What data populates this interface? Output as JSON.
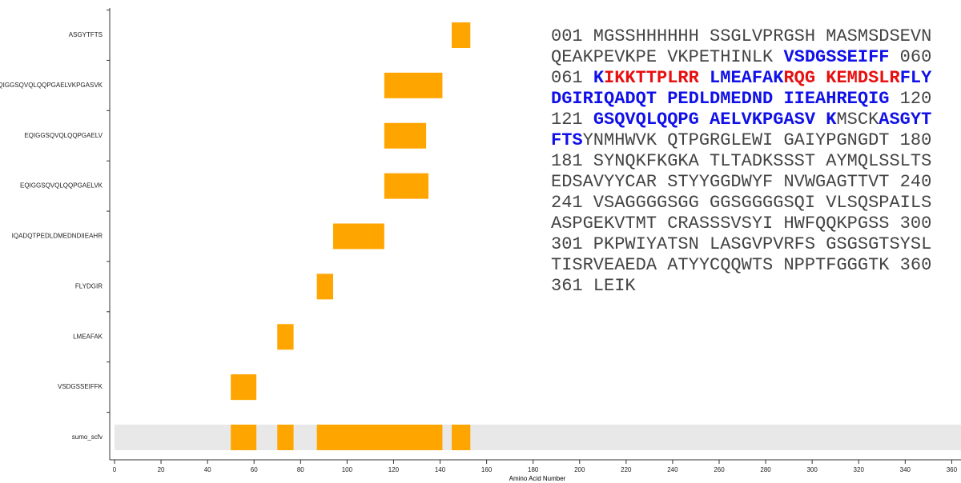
{
  "chart_data": {
    "type": "coverage",
    "color": "#ffa500",
    "protein": "sumo_scfv",
    "peptides": [
      {
        "name": "ASGYTFTS",
        "start": 146,
        "end": 153
      },
      {
        "name": "EQIGGSQVQLQQPGAELVKPGASVK",
        "start": 117,
        "end": 141
      },
      {
        "name": "EQIGGSQVQLQQPGAELV",
        "start": 117,
        "end": 134
      },
      {
        "name": "EQIGGSQVQLQQPGAELVK",
        "start": 117,
        "end": 135
      },
      {
        "name": "IQADQTPEDLDMEDNDIIEAHR",
        "start": 95,
        "end": 116
      },
      {
        "name": "FLYDGIR",
        "start": 88,
        "end": 94
      },
      {
        "name": "LMEAFAK",
        "start": 71,
        "end": 77
      },
      {
        "name": "VSDGSSEIFFK",
        "start": 51,
        "end": 61
      }
    ],
    "xlabel": "Amino Acid Number",
    "xlim": [
      0,
      364
    ],
    "xticks": [
      0,
      20,
      40,
      60,
      80,
      100,
      120,
      140,
      160,
      180,
      200,
      220,
      240,
      260,
      280,
      300,
      320,
      340,
      360
    ],
    "sequence": [
      [
        {
          "text": "001 MGSSHHHHHH SSGLVPRGSH MASMSDSEVN",
          "style": "plain"
        }
      ],
      [
        {
          "text": "QEAKPEVKPE VKPETHINLK ",
          "style": "plain"
        },
        {
          "text": "VSDGSSEIFF",
          "style": "blue"
        },
        {
          "text": " 060",
          "style": "plain"
        }
      ],
      [
        {
          "text": "061 ",
          "style": "plain"
        },
        {
          "text": "K",
          "style": "blue"
        },
        {
          "text": "IKKTTPLRR",
          "style": "red"
        },
        {
          "text": " LMEAFAK",
          "style": "blue"
        },
        {
          "text": "RQG KEMDSLR",
          "style": "red"
        },
        {
          "text": "FLY",
          "style": "blue"
        }
      ],
      [
        {
          "text": "DGIRIQADQT PEDLDMEDND IIEAHREQIG",
          "style": "blue"
        },
        {
          "text": " 120",
          "style": "plain"
        }
      ],
      [
        {
          "text": "121 ",
          "style": "plain"
        },
        {
          "text": "GSQVQLQQPG AELVKPGASV K",
          "style": "blue"
        },
        {
          "text": "MSCK",
          "style": "plain"
        },
        {
          "text": "ASGYT",
          "style": "blue"
        }
      ],
      [
        {
          "text": "FTS",
          "style": "blue"
        },
        {
          "text": "YNMHWVK QTPGRGLEWI GAIYPGNGDT 180",
          "style": "plain"
        }
      ],
      [
        {
          "text": "181 SYNQKFKGKA TLTADKSSST AYMQLSSLTS",
          "style": "plain"
        }
      ],
      [
        {
          "text": "EDSAVYYCAR STYYGGDWYF NVWGAGTTVT 240",
          "style": "plain"
        }
      ],
      [
        {
          "text": "241 VSAGGGGSGG GGSGGGGSQI VLSQSPAILS",
          "style": "plain"
        }
      ],
      [
        {
          "text": "ASPGEKVTMT CRASSSVSYI HWFQQKPGSS 300",
          "style": "plain"
        }
      ],
      [
        {
          "text": "301 PKPWIYATSN LASGVPVRFS GSGSGTSYSL",
          "style": "plain"
        }
      ],
      [
        {
          "text": "TISRVEAEDA ATYYCQQWTS NPPTFGGGTK 360",
          "style": "plain"
        }
      ],
      [
        {
          "text": "361 LEIK",
          "style": "plain"
        }
      ]
    ]
  }
}
